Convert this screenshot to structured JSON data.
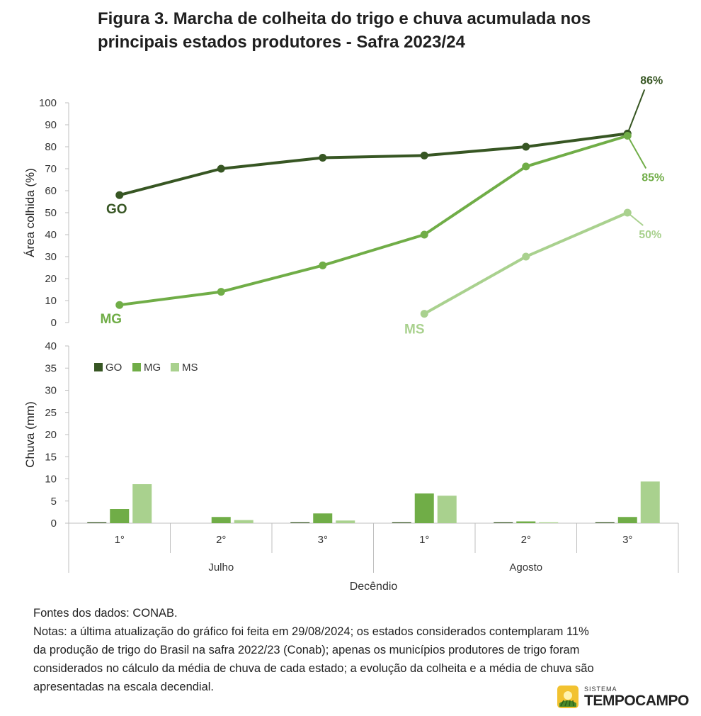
{
  "title_line1": "Figura 3. Marcha de colheita do trigo e chuva acumulada nos",
  "title_line2": "principais estados produtores - Safra 2023/24",
  "chart_data": [
    {
      "type": "line",
      "ylabel": "Área  colhida (%)",
      "ylim": [
        0,
        100
      ],
      "yticks": [
        0,
        10,
        20,
        30,
        40,
        50,
        60,
        70,
        80,
        90,
        100
      ],
      "x": [
        "Julho 1°",
        "Julho 2°",
        "Julho 3°",
        "Agosto 1°",
        "Agosto 2°",
        "Agosto 3°"
      ],
      "series": [
        {
          "name": "GO",
          "color": "#375623",
          "values": [
            58,
            70,
            75,
            76,
            80,
            86
          ],
          "end_label": "86%"
        },
        {
          "name": "MG",
          "color": "#70ad47",
          "values": [
            8,
            14,
            26,
            40,
            71,
            85
          ],
          "end_label": "85%"
        },
        {
          "name": "MS",
          "color": "#a9d18e",
          "values": [
            null,
            null,
            null,
            4,
            30,
            50
          ],
          "end_label": "50%"
        }
      ],
      "grid": false
    },
    {
      "type": "bar",
      "ylabel": "Chuva (mm)",
      "xlabel": "Decêndio",
      "ylim": [
        0,
        40
      ],
      "yticks": [
        0,
        5,
        10,
        15,
        20,
        25,
        30,
        35,
        40
      ],
      "categories": [
        "1°",
        "2°",
        "3°",
        "1°",
        "2°",
        "3°"
      ],
      "groups": [
        "Julho",
        "Agosto"
      ],
      "series": [
        {
          "name": "GO",
          "color": "#375623",
          "values": [
            0.2,
            0,
            0.2,
            0.2,
            0.2,
            0.2
          ]
        },
        {
          "name": "MG",
          "color": "#70ad47",
          "values": [
            3.2,
            1.4,
            2.2,
            6.7,
            0.4,
            1.4
          ]
        },
        {
          "name": "MS",
          "color": "#a9d18e",
          "values": [
            8.8,
            0.7,
            0.6,
            6.2,
            0.2,
            9.4
          ]
        }
      ],
      "legend": "top-left",
      "grid": false
    }
  ],
  "notes": {
    "source": "Fontes dos dados: CONAB.",
    "line1": "Notas: a última atualização do gráfico foi feita em 29/08/2024; os estados considerados contemplaram 11%",
    "line2": "da produção de trigo do Brasil na safra 2022/23 (Conab); apenas os municípios produtores de trigo foram",
    "line3": "considerados no cálculo da média de chuva de cada estado; a evolução da colheita e a média de chuva são",
    "line4": "apresentadas na escala decendial."
  },
  "logo": {
    "small": "SISTEMA",
    "big": "TEMPOCAMPO"
  }
}
